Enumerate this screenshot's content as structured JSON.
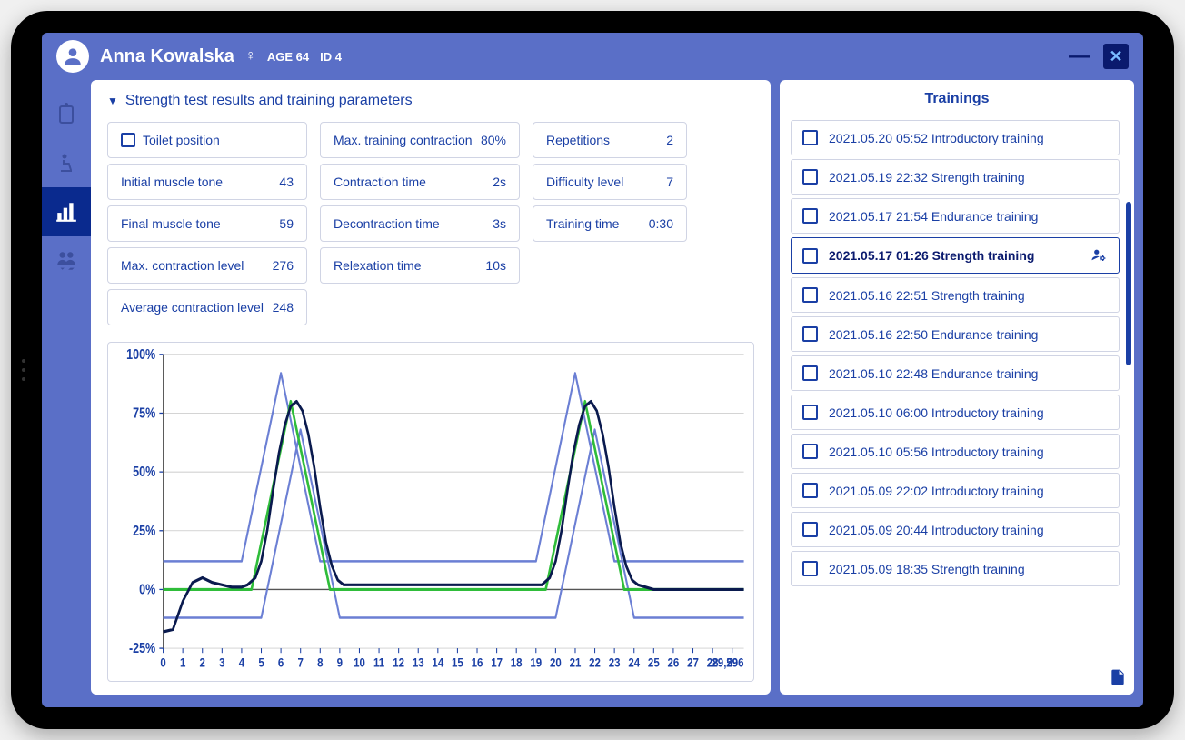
{
  "header": {
    "patient_name": "Anna Kowalska",
    "gender_symbol": "♀",
    "age_label": "AGE 64",
    "id_label": "ID 4"
  },
  "colors": {
    "app_bg": "#5a6fc7",
    "accent": "#1a3fa5",
    "dark_accent": "#0a1a6e",
    "panel_bg": "#ffffff",
    "border": "#d0d4e4"
  },
  "section_title": "Strength test results and training parameters",
  "params": {
    "col1": [
      {
        "label": "Toilet position",
        "value": "",
        "checkbox": true
      },
      {
        "label": "Initial muscle tone",
        "value": "43"
      },
      {
        "label": "Final muscle tone",
        "value": "59"
      },
      {
        "label": "Max. contraction level",
        "value": "276"
      },
      {
        "label": "Average contraction level",
        "value": "248"
      }
    ],
    "col2": [
      {
        "label": "Max. training contraction",
        "value": "80%"
      },
      {
        "label": "Contraction time",
        "value": "2s"
      },
      {
        "label": "Decontraction time",
        "value": "3s"
      },
      {
        "label": "Relexation time",
        "value": "10s"
      }
    ],
    "col3": [
      {
        "label": "Repetitions",
        "value": "2"
      },
      {
        "label": "Difficulty level",
        "value": "7"
      },
      {
        "label": "Training time",
        "value": "0:30"
      }
    ]
  },
  "chart": {
    "type": "line",
    "ylim": [
      -25,
      100
    ],
    "ytick_step": 25,
    "ytick_labels": [
      "-25%",
      "0%",
      "25%",
      "50%",
      "75%",
      "100%"
    ],
    "xlim": [
      0,
      29.596
    ],
    "xticks": [
      0,
      1,
      2,
      3,
      4,
      5,
      6,
      7,
      8,
      9,
      10,
      11,
      12,
      13,
      14,
      15,
      16,
      17,
      18,
      19,
      20,
      21,
      22,
      23,
      24,
      25,
      26,
      27,
      28,
      29
    ],
    "xtick_labels_extra": "29,596",
    "grid_color": "#888888",
    "bg_color": "#ffffff",
    "label_color": "#1a3fa5",
    "label_fontsize": 12,
    "series": {
      "envelope_upper": {
        "color": "#6b7fd4",
        "width": 2,
        "points": [
          [
            0,
            12
          ],
          [
            4,
            12
          ],
          [
            6,
            92
          ],
          [
            8,
            12
          ],
          [
            19,
            12
          ],
          [
            21,
            92
          ],
          [
            23,
            12
          ],
          [
            29.596,
            12
          ]
        ]
      },
      "envelope_lower": {
        "color": "#6b7fd4",
        "width": 2,
        "points": [
          [
            0,
            -12
          ],
          [
            5,
            -12
          ],
          [
            7,
            68
          ],
          [
            9,
            -12
          ],
          [
            20,
            -12
          ],
          [
            22,
            68
          ],
          [
            24,
            -12
          ],
          [
            29.596,
            -12
          ]
        ]
      },
      "target": {
        "color": "#2fbd3a",
        "width": 2.5,
        "points": [
          [
            0,
            0
          ],
          [
            4.5,
            0
          ],
          [
            6.5,
            80
          ],
          [
            8.5,
            0
          ],
          [
            19.5,
            0
          ],
          [
            21.5,
            80
          ],
          [
            23.5,
            0
          ],
          [
            29.596,
            0
          ]
        ]
      },
      "measured": {
        "color": "#0a1a4e",
        "width": 2.5,
        "points": [
          [
            0,
            -18
          ],
          [
            0.5,
            -17
          ],
          [
            1,
            -5
          ],
          [
            1.5,
            3
          ],
          [
            2,
            5
          ],
          [
            2.5,
            3
          ],
          [
            3,
            2
          ],
          [
            3.5,
            1
          ],
          [
            4,
            1
          ],
          [
            4.3,
            2
          ],
          [
            4.7,
            5
          ],
          [
            5,
            12
          ],
          [
            5.3,
            25
          ],
          [
            5.6,
            42
          ],
          [
            5.9,
            58
          ],
          [
            6.2,
            70
          ],
          [
            6.5,
            78
          ],
          [
            6.8,
            80
          ],
          [
            7.1,
            76
          ],
          [
            7.4,
            66
          ],
          [
            7.7,
            52
          ],
          [
            8,
            35
          ],
          [
            8.3,
            20
          ],
          [
            8.6,
            10
          ],
          [
            8.9,
            4
          ],
          [
            9.2,
            2
          ],
          [
            10,
            2
          ],
          [
            11,
            2
          ],
          [
            12,
            2
          ],
          [
            13,
            2
          ],
          [
            14,
            2
          ],
          [
            15,
            2
          ],
          [
            16,
            2
          ],
          [
            17,
            2
          ],
          [
            18,
            2
          ],
          [
            19,
            2
          ],
          [
            19.3,
            2
          ],
          [
            19.7,
            5
          ],
          [
            20,
            12
          ],
          [
            20.3,
            25
          ],
          [
            20.6,
            42
          ],
          [
            20.9,
            58
          ],
          [
            21.2,
            70
          ],
          [
            21.5,
            78
          ],
          [
            21.8,
            80
          ],
          [
            22.1,
            76
          ],
          [
            22.4,
            66
          ],
          [
            22.7,
            52
          ],
          [
            23,
            35
          ],
          [
            23.3,
            20
          ],
          [
            23.6,
            10
          ],
          [
            23.9,
            4
          ],
          [
            24.2,
            2
          ],
          [
            25,
            0
          ],
          [
            26,
            0
          ],
          [
            27,
            0
          ],
          [
            28,
            0
          ],
          [
            29,
            0
          ],
          [
            29.596,
            0
          ]
        ]
      }
    }
  },
  "trainings": {
    "title": "Trainings",
    "items": [
      {
        "label": "2021.05.20 05:52 Introductory training",
        "selected": false
      },
      {
        "label": "2021.05.19 22:32 Strength training",
        "selected": false
      },
      {
        "label": "2021.05.17 21:54 Endurance training",
        "selected": false
      },
      {
        "label": "2021.05.17 01:26 Strength training",
        "selected": true
      },
      {
        "label": "2021.05.16 22:51 Strength training",
        "selected": false
      },
      {
        "label": "2021.05.16 22:50 Endurance training",
        "selected": false
      },
      {
        "label": "2021.05.10 22:48 Endurance training",
        "selected": false
      },
      {
        "label": "2021.05.10 06:00 Introductory training",
        "selected": false
      },
      {
        "label": "2021.05.10 05:56 Introductory training",
        "selected": false
      },
      {
        "label": "2021.05.09 22:02 Introductory training",
        "selected": false
      },
      {
        "label": "2021.05.09 20:44 Introductory training",
        "selected": false
      },
      {
        "label": "2021.05.09 18:35 Strength training",
        "selected": false
      }
    ]
  }
}
